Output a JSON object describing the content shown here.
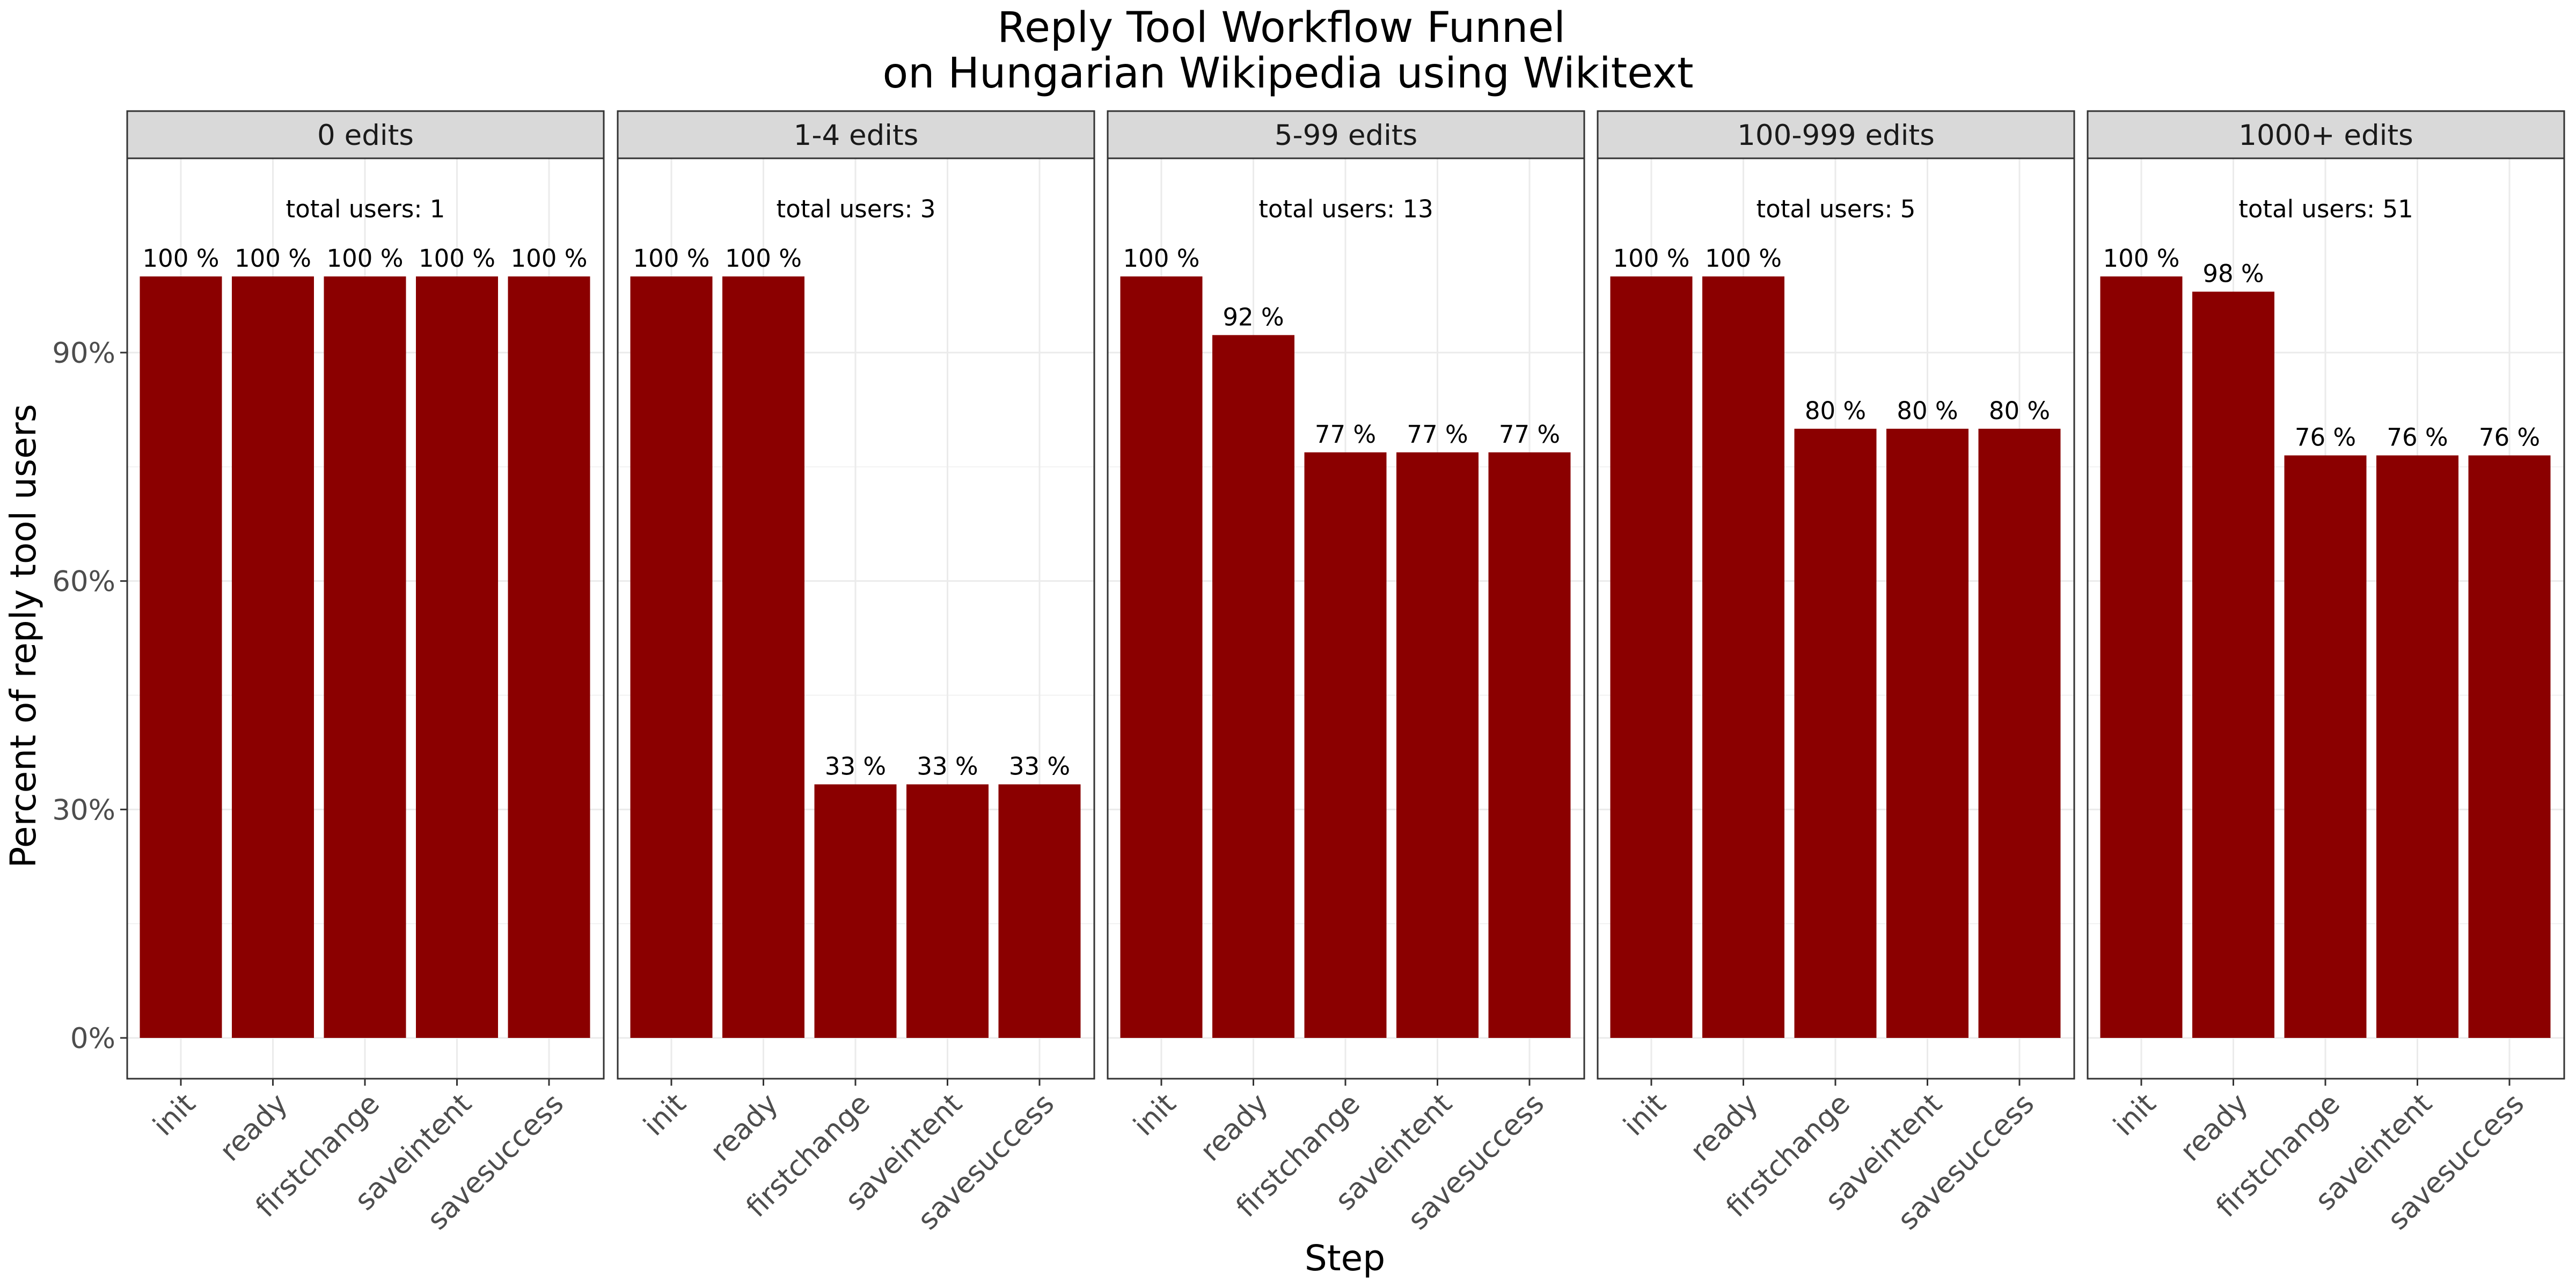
{
  "chart_data": {
    "type": "bar",
    "title": "Reply Tool Workflow Funnel\non Hungarian Wikipedia using Wikitext",
    "xlabel": "Step",
    "ylabel": "Percent of reply tool users",
    "categories": [
      "init",
      "ready",
      "firstchange",
      "saveintent",
      "savesuccess"
    ],
    "ylim": [
      0,
      1.04
    ],
    "yticks": [
      0,
      0.3,
      0.6,
      0.9
    ],
    "ytick_labels": [
      "0%",
      "30%",
      "60%",
      "90%"
    ],
    "grid": true,
    "bar_color": "#8b0000",
    "facets": [
      {
        "name": "0 edits",
        "total_label": "total users: 1",
        "values": [
          1.0,
          1.0,
          1.0,
          1.0,
          1.0
        ],
        "labels": [
          "100 %",
          "100 %",
          "100 %",
          "100 %",
          "100 %"
        ]
      },
      {
        "name": "1-4 edits",
        "total_label": "total users: 3",
        "values": [
          1.0,
          1.0,
          0.333,
          0.333,
          0.333
        ],
        "labels": [
          "100 %",
          "100 %",
          "33 %",
          "33 %",
          "33 %"
        ]
      },
      {
        "name": "5-99 edits",
        "total_label": "total users: 13",
        "values": [
          1.0,
          0.923,
          0.769,
          0.769,
          0.769
        ],
        "labels": [
          "100 %",
          "92 %",
          "77 %",
          "77 %",
          "77 %"
        ]
      },
      {
        "name": "100-999 edits",
        "total_label": "total users: 5",
        "values": [
          1.0,
          1.0,
          0.8,
          0.8,
          0.8
        ],
        "labels": [
          "100 %",
          "100 %",
          "80 %",
          "80 %",
          "80 %"
        ]
      },
      {
        "name": "1000+ edits",
        "total_label": "total users: 51",
        "values": [
          1.0,
          0.98,
          0.765,
          0.765,
          0.765
        ],
        "labels": [
          "100 %",
          "98 %",
          "76 %",
          "76 %",
          "76 %"
        ]
      }
    ]
  }
}
